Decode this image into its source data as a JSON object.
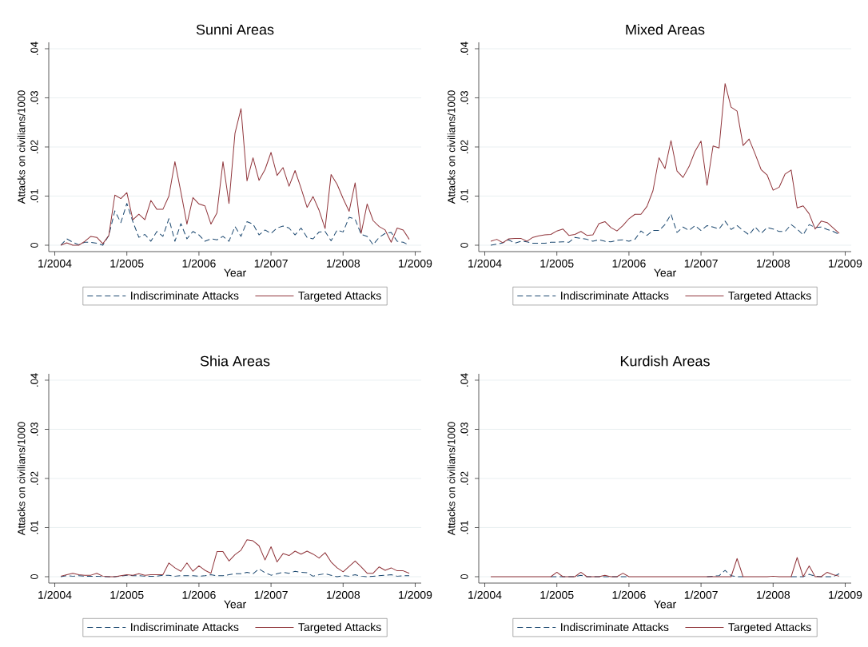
{
  "chart_data": [
    {
      "type": "line",
      "title": "Sunni Areas",
      "xlabel": "Year",
      "ylabel": "Attacks on civilians/1000",
      "grid": "y",
      "legend": "bottom",
      "xlim": [
        "2003-12",
        "2009-02"
      ],
      "ylim": [
        -0.0013,
        0.0413
      ],
      "xticks": [
        {
          "value": "2004-01",
          "label": "1/2004"
        },
        {
          "value": "2005-01",
          "label": "1/2005"
        },
        {
          "value": "2006-01",
          "label": "1/2006"
        },
        {
          "value": "2007-01",
          "label": "1/2007"
        },
        {
          "value": "2008-01",
          "label": "1/2008"
        },
        {
          "value": "2009-01",
          "label": "1/2009"
        }
      ],
      "yticks": [
        0,
        {
          "value": 0.01,
          "label": ".01"
        },
        {
          "value": 0.02,
          "label": ".02"
        },
        {
          "value": 0.03,
          "label": ".03"
        },
        {
          "value": 0.04,
          "label": ".04"
        }
      ],
      "x": [
        "2004-02",
        "2004-03",
        "2004-04",
        "2004-05",
        "2004-06",
        "2004-07",
        "2004-08",
        "2004-09",
        "2004-10",
        "2004-11",
        "2004-12",
        "2005-01",
        "2005-02",
        "2005-03",
        "2005-04",
        "2005-05",
        "2005-06",
        "2005-07",
        "2005-08",
        "2005-09",
        "2005-10",
        "2005-11",
        "2005-12",
        "2006-01",
        "2006-02",
        "2006-03",
        "2006-04",
        "2006-05",
        "2006-06",
        "2006-07",
        "2006-08",
        "2006-09",
        "2006-10",
        "2006-11",
        "2006-12",
        "2007-01",
        "2007-02",
        "2007-03",
        "2007-04",
        "2007-05",
        "2007-06",
        "2007-07",
        "2007-08",
        "2007-09",
        "2007-10",
        "2007-11",
        "2007-12",
        "2008-01",
        "2008-02",
        "2008-03",
        "2008-04",
        "2008-05",
        "2008-06",
        "2008-07",
        "2008-08",
        "2008-09",
        "2008-10",
        "2008-11",
        "2008-12"
      ],
      "series": [
        {
          "name": "Indiscriminate Attacks",
          "color": "#1a476f",
          "line_style": "dashed",
          "values": [
            0,
            0.0013,
            0.0006,
            0.0001,
            0.0006,
            0.0006,
            0.0004,
            0,
            0.002,
            0.007,
            0.0046,
            0.0085,
            0.0048,
            0.0016,
            0.0022,
            0.0008,
            0.0028,
            0.0018,
            0.0054,
            0.0008,
            0.0044,
            0.0013,
            0.0028,
            0.0021,
            0.0008,
            0.0013,
            0.0011,
            0.0018,
            0.0008,
            0.0038,
            0.0018,
            0.0048,
            0.0043,
            0.0021,
            0.0031,
            0.0024,
            0.0035,
            0.0039,
            0.0035,
            0.0021,
            0.0035,
            0.0016,
            0.0013,
            0.0027,
            0.0028,
            0.0009,
            0.0031,
            0.0027,
            0.0057,
            0.0053,
            0.0022,
            0.0018,
            0.0001,
            0.0016,
            0.0024,
            0.0026,
            0.0008,
            0.0006,
            0
          ]
        },
        {
          "name": "Targeted Attacks",
          "color": "#90353b",
          "line_style": "solid",
          "values": [
            0,
            0.0005,
            0,
            0,
            0.0008,
            0.0018,
            0.0016,
            0.0003,
            0.002,
            0.0102,
            0.0095,
            0.0107,
            0.0052,
            0.0063,
            0.0052,
            0.0091,
            0.0073,
            0.0073,
            0.01,
            0.017,
            0.0108,
            0.0043,
            0.0097,
            0.0084,
            0.008,
            0.0043,
            0.0066,
            0.017,
            0.0085,
            0.0228,
            0.0278,
            0.0131,
            0.0178,
            0.0132,
            0.0154,
            0.0189,
            0.0142,
            0.0158,
            0.012,
            0.0152,
            0.0116,
            0.0077,
            0.0099,
            0.0071,
            0.0034,
            0.0144,
            0.0124,
            0.0095,
            0.0069,
            0.0127,
            0.0024,
            0.0084,
            0.005,
            0.0038,
            0.0031,
            0.0006,
            0.0035,
            0.0031,
            0.0012
          ]
        }
      ]
    },
    {
      "type": "line",
      "title": "Mixed Areas",
      "xlabel": "Year",
      "ylabel": "Attacks on civilians/1000",
      "grid": "y",
      "legend": "bottom",
      "xlim": [
        "2003-12",
        "2009-02"
      ],
      "ylim": [
        -0.0013,
        0.0413
      ],
      "xticks": [
        {
          "value": "2004-01",
          "label": "1/2004"
        },
        {
          "value": "2005-01",
          "label": "1/2005"
        },
        {
          "value": "2006-01",
          "label": "1/2006"
        },
        {
          "value": "2007-01",
          "label": "1/2007"
        },
        {
          "value": "2008-01",
          "label": "1/2008"
        },
        {
          "value": "2009-01",
          "label": "1/2009"
        }
      ],
      "yticks": [
        0,
        {
          "value": 0.01,
          "label": ".01"
        },
        {
          "value": 0.02,
          "label": ".02"
        },
        {
          "value": 0.03,
          "label": ".03"
        },
        {
          "value": 0.04,
          "label": ".04"
        }
      ],
      "x": [
        "2004-02",
        "2004-03",
        "2004-04",
        "2004-05",
        "2004-06",
        "2004-07",
        "2004-08",
        "2004-09",
        "2004-10",
        "2004-11",
        "2004-12",
        "2005-01",
        "2005-02",
        "2005-03",
        "2005-04",
        "2005-05",
        "2005-06",
        "2005-07",
        "2005-08",
        "2005-09",
        "2005-10",
        "2005-11",
        "2005-12",
        "2006-01",
        "2006-02",
        "2006-03",
        "2006-04",
        "2006-05",
        "2006-06",
        "2006-07",
        "2006-08",
        "2006-09",
        "2006-10",
        "2006-11",
        "2006-12",
        "2007-01",
        "2007-02",
        "2007-03",
        "2007-04",
        "2007-05",
        "2007-06",
        "2007-07",
        "2007-08",
        "2007-09",
        "2007-10",
        "2007-11",
        "2007-12",
        "2008-01",
        "2008-02",
        "2008-03",
        "2008-04",
        "2008-05",
        "2008-06",
        "2008-07",
        "2008-08",
        "2008-09",
        "2008-10",
        "2008-11",
        "2008-12"
      ],
      "series": [
        {
          "name": "Indiscriminate Attacks",
          "color": "#1a476f",
          "line_style": "dashed",
          "values": [
            0,
            0.0002,
            0.0005,
            0.0011,
            0.0004,
            0.0008,
            0.0007,
            0.0004,
            0.0004,
            0.0004,
            0.0006,
            0.0006,
            0.0007,
            0.0006,
            0.0016,
            0.0014,
            0.0012,
            0.0008,
            0.0011,
            0.0008,
            0.0007,
            0.001,
            0.0011,
            0.0008,
            0.0012,
            0.0029,
            0.002,
            0.003,
            0.003,
            0.0042,
            0.0063,
            0.0026,
            0.0037,
            0.003,
            0.004,
            0.003,
            0.004,
            0.0037,
            0.0033,
            0.0049,
            0.0032,
            0.004,
            0.003,
            0.0021,
            0.0037,
            0.0024,
            0.0036,
            0.0033,
            0.0028,
            0.0028,
            0.0042,
            0.0033,
            0.0021,
            0.0042,
            0.0036,
            0.0037,
            0.0032,
            0.0028,
            0.0022
          ]
        },
        {
          "name": "Targeted Attacks",
          "color": "#90353b",
          "line_style": "solid",
          "values": [
            0.0008,
            0.0012,
            0.0005,
            0.0013,
            0.0014,
            0.0014,
            0.0008,
            0.0016,
            0.0019,
            0.0021,
            0.0022,
            0.0029,
            0.0033,
            0.002,
            0.0022,
            0.0028,
            0.002,
            0.0021,
            0.0044,
            0.0048,
            0.0036,
            0.0029,
            0.004,
            0.0054,
            0.0063,
            0.0063,
            0.0079,
            0.0111,
            0.0178,
            0.0156,
            0.0213,
            0.0151,
            0.0138,
            0.016,
            0.0191,
            0.0212,
            0.0122,
            0.0202,
            0.0198,
            0.0329,
            0.0281,
            0.0273,
            0.0203,
            0.0216,
            0.0186,
            0.0154,
            0.0143,
            0.0112,
            0.0118,
            0.0145,
            0.0153,
            0.0076,
            0.008,
            0.0064,
            0.0033,
            0.0049,
            0.0046,
            0.0035,
            0.0024
          ]
        }
      ]
    },
    {
      "type": "line",
      "title": "Shia Areas",
      "xlabel": "Year",
      "ylabel": "Attacks on civilians/1000",
      "grid": "y",
      "legend": "bottom",
      "xlim": [
        "2003-12",
        "2009-02"
      ],
      "ylim": [
        -0.0013,
        0.0413
      ],
      "xticks": [
        {
          "value": "2004-01",
          "label": "1/2004"
        },
        {
          "value": "2005-01",
          "label": "1/2005"
        },
        {
          "value": "2006-01",
          "label": "1/2006"
        },
        {
          "value": "2007-01",
          "label": "1/2007"
        },
        {
          "value": "2008-01",
          "label": "1/2008"
        },
        {
          "value": "2009-01",
          "label": "1/2009"
        }
      ],
      "yticks": [
        0,
        {
          "value": 0.01,
          "label": ".01"
        },
        {
          "value": 0.02,
          "label": ".02"
        },
        {
          "value": 0.03,
          "label": ".03"
        },
        {
          "value": 0.04,
          "label": ".04"
        }
      ],
      "x": [
        "2004-02",
        "2004-03",
        "2004-04",
        "2004-05",
        "2004-06",
        "2004-07",
        "2004-08",
        "2004-09",
        "2004-10",
        "2004-11",
        "2004-12",
        "2005-01",
        "2005-02",
        "2005-03",
        "2005-04",
        "2005-05",
        "2005-06",
        "2005-07",
        "2005-08",
        "2005-09",
        "2005-10",
        "2005-11",
        "2005-12",
        "2006-01",
        "2006-02",
        "2006-03",
        "2006-04",
        "2006-05",
        "2006-06",
        "2006-07",
        "2006-08",
        "2006-09",
        "2006-10",
        "2006-11",
        "2006-12",
        "2007-01",
        "2007-02",
        "2007-03",
        "2007-04",
        "2007-05",
        "2007-06",
        "2007-07",
        "2007-08",
        "2007-09",
        "2007-10",
        "2007-11",
        "2007-12",
        "2008-01",
        "2008-02",
        "2008-03",
        "2008-04",
        "2008-05",
        "2008-06",
        "2008-07",
        "2008-08",
        "2008-09",
        "2008-10",
        "2008-11",
        "2008-12"
      ],
      "series": [
        {
          "name": "Indiscriminate Attacks",
          "color": "#1a476f",
          "line_style": "dashed",
          "values": [
            0,
            0.0002,
            0.0001,
            0.0002,
            0.0001,
            0.0001,
            0.0001,
            0,
            0,
            0,
            0.0001,
            0.0003,
            0.0002,
            0.0002,
            0.0001,
            0.0001,
            0.0001,
            0.0003,
            0.0003,
            0.0001,
            0.0002,
            0.0002,
            0.0002,
            0.0001,
            0.0002,
            0.0004,
            0.0002,
            0.0002,
            0.0004,
            0.0006,
            0.0006,
            0.0009,
            0.0006,
            0.0016,
            0.0008,
            0.0003,
            0.0006,
            0.0009,
            0.0007,
            0.0011,
            0.0009,
            0.0008,
            0.0001,
            0.0004,
            0.0006,
            0.0003,
            0,
            0.0002,
            0.0001,
            0.0004,
            0.0001,
            0,
            0.0001,
            0.0002,
            0.0003,
            0.0004,
            0.0001,
            0.0002,
            0.0002
          ]
        },
        {
          "name": "Targeted Attacks",
          "color": "#90353b",
          "line_style": "solid",
          "values": [
            0.0001,
            0.0004,
            0.0007,
            0.0004,
            0.0003,
            0.0003,
            0.0007,
            0.0001,
            0,
            0,
            0.0002,
            0.0004,
            0.0003,
            0.0006,
            0.0003,
            0.0004,
            0.0004,
            0.0004,
            0.0028,
            0.0018,
            0.0011,
            0.0028,
            0.0011,
            0.0022,
            0.0013,
            0.0007,
            0.0051,
            0.0051,
            0.0032,
            0.0045,
            0.0054,
            0.0075,
            0.0073,
            0.0063,
            0.0034,
            0.0061,
            0.003,
            0.0047,
            0.0043,
            0.0052,
            0.0046,
            0.0052,
            0.0046,
            0.0038,
            0.0049,
            0.003,
            0.0018,
            0.001,
            0.0021,
            0.0032,
            0.002,
            0.0007,
            0.0007,
            0.002,
            0.0013,
            0.0018,
            0.0012,
            0.0012,
            0.0007
          ]
        }
      ]
    },
    {
      "type": "line",
      "title": "Kurdish Areas",
      "xlabel": "Year",
      "ylabel": "Attacks on civilians/1000",
      "grid": "y",
      "legend": "bottom",
      "xlim": [
        "2003-12",
        "2009-02"
      ],
      "ylim": [
        -0.0013,
        0.0413
      ],
      "xticks": [
        {
          "value": "2004-01",
          "label": "1/2004"
        },
        {
          "value": "2005-01",
          "label": "1/2005"
        },
        {
          "value": "2006-01",
          "label": "1/2006"
        },
        {
          "value": "2007-01",
          "label": "1/2007"
        },
        {
          "value": "2008-01",
          "label": "1/2008"
        },
        {
          "value": "2009-01",
          "label": "1/2009"
        }
      ],
      "yticks": [
        0,
        {
          "value": 0.01,
          "label": ".01"
        },
        {
          "value": 0.02,
          "label": ".02"
        },
        {
          "value": 0.03,
          "label": ".03"
        },
        {
          "value": 0.04,
          "label": ".04"
        }
      ],
      "x": [
        "2004-02",
        "2004-03",
        "2004-04",
        "2004-05",
        "2004-06",
        "2004-07",
        "2004-08",
        "2004-09",
        "2004-10",
        "2004-11",
        "2004-12",
        "2005-01",
        "2005-02",
        "2005-03",
        "2005-04",
        "2005-05",
        "2005-06",
        "2005-07",
        "2005-08",
        "2005-09",
        "2005-10",
        "2005-11",
        "2005-12",
        "2006-01",
        "2006-02",
        "2006-03",
        "2006-04",
        "2006-05",
        "2006-06",
        "2006-07",
        "2006-08",
        "2006-09",
        "2006-10",
        "2006-11",
        "2006-12",
        "2007-01",
        "2007-02",
        "2007-03",
        "2007-04",
        "2007-05",
        "2007-06",
        "2007-07",
        "2007-08",
        "2007-09",
        "2007-10",
        "2007-11",
        "2007-12",
        "2008-01",
        "2008-02",
        "2008-03",
        "2008-04",
        "2008-05",
        "2008-06",
        "2008-07",
        "2008-08",
        "2008-09",
        "2008-10",
        "2008-11",
        "2008-12"
      ],
      "series": [
        {
          "name": "Indiscriminate Attacks",
          "color": "#1a476f",
          "line_style": "dashed",
          "values": [
            null,
            null,
            null,
            null,
            null,
            null,
            null,
            null,
            null,
            null,
            0,
            0,
            0,
            0,
            0,
            0.0003,
            0,
            0,
            0,
            0,
            0,
            0,
            0,
            0,
            null,
            null,
            null,
            null,
            null,
            null,
            null,
            null,
            null,
            null,
            null,
            null,
            0,
            0.0001,
            0.0002,
            0.0013,
            0.0002,
            0,
            0,
            null,
            null,
            null,
            null,
            null,
            null,
            null,
            0,
            0,
            0,
            0.0005,
            0.0001,
            0,
            0,
            0,
            0.0006
          ]
        },
        {
          "name": "Targeted Attacks",
          "color": "#90353b",
          "line_style": "solid",
          "values": [
            0,
            0,
            0,
            0,
            0,
            0,
            0,
            0,
            0,
            0,
            0,
            0.0009,
            0,
            0,
            0,
            0.0009,
            0,
            0,
            0,
            0.0003,
            0,
            0,
            0.0007,
            0,
            0,
            0,
            0,
            0,
            0,
            0,
            0,
            0,
            0,
            0,
            0,
            0,
            0,
            0,
            0,
            0,
            0,
            0.0037,
            0,
            0,
            0,
            0,
            0,
            0.0001,
            0,
            0,
            0,
            0.0039,
            0,
            0.0022,
            0,
            0,
            0.0009,
            0.0004,
            0.0001
          ]
        }
      ]
    }
  ]
}
